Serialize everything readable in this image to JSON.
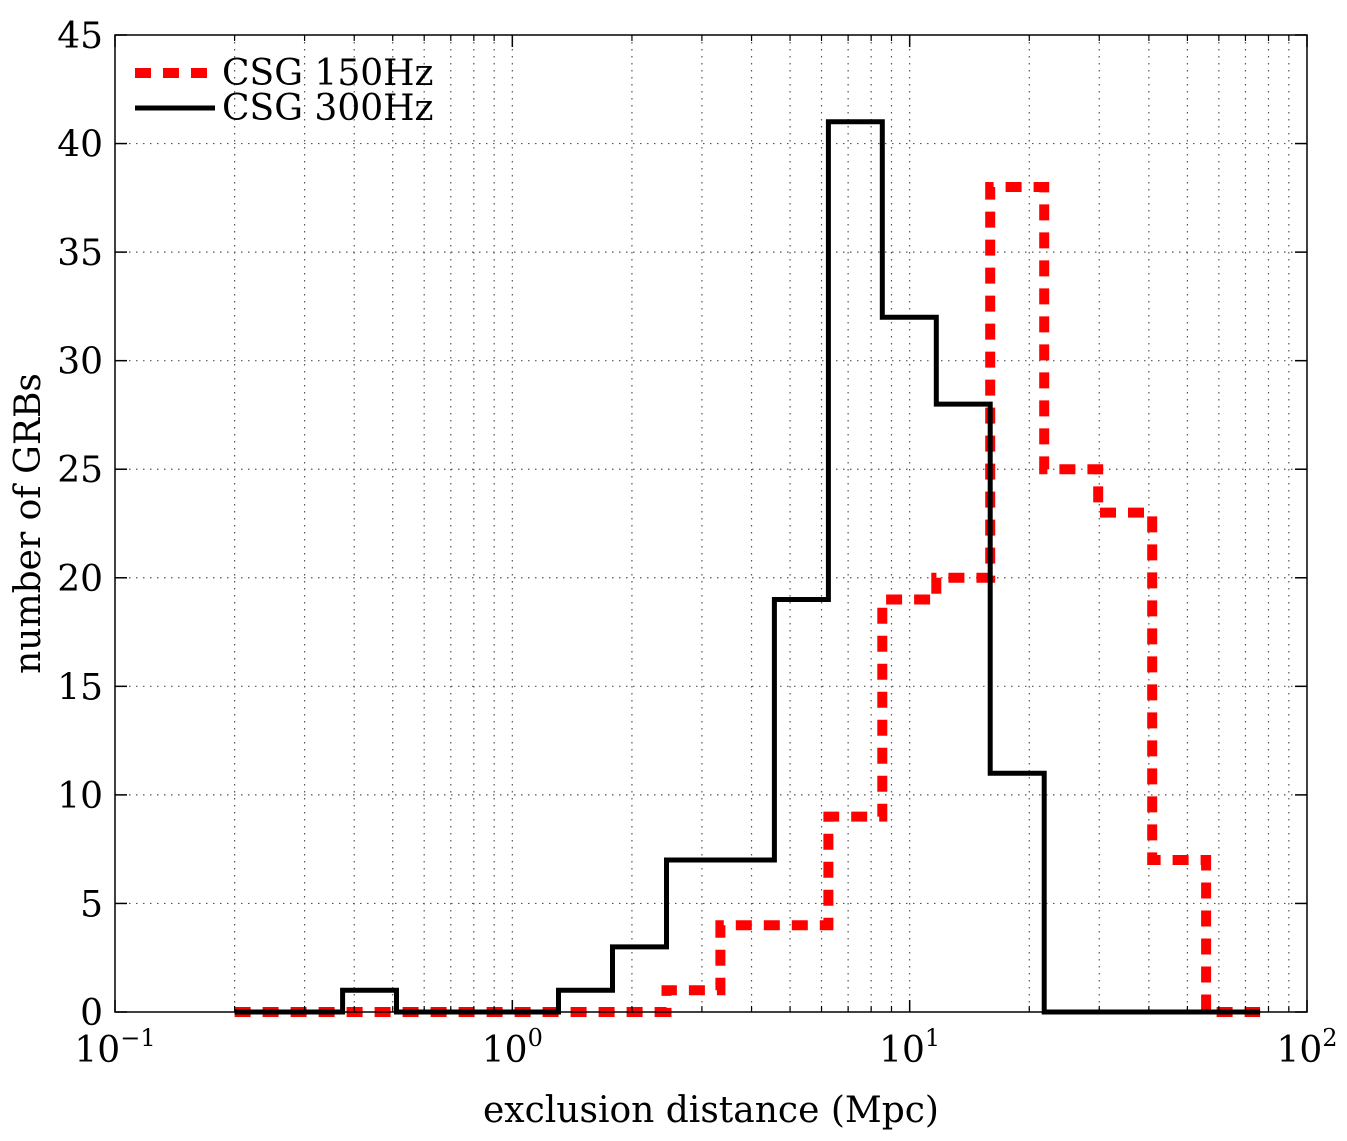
{
  "chart_data": {
    "type": "histogram",
    "xlabel": "exclusion distance (Mpc)",
    "ylabel": "number of GRBs",
    "xscale": "log",
    "xlim": [
      0.1,
      100
    ],
    "ylim": [
      0,
      45
    ],
    "grid": true,
    "legend_position": "top-left",
    "x_ticks": [
      {
        "value": 0.1,
        "base": "10",
        "exp": "−1"
      },
      {
        "value": 1,
        "base": "10",
        "exp": "0"
      },
      {
        "value": 10,
        "base": "10",
        "exp": "1"
      },
      {
        "value": 100,
        "base": "10",
        "exp": "2"
      }
    ],
    "y_ticks": [
      0,
      5,
      10,
      15,
      20,
      25,
      30,
      35,
      40,
      45
    ],
    "bin_edges": [
      0.2,
      0.273,
      0.374,
      0.511,
      0.699,
      0.956,
      1.307,
      1.787,
      2.443,
      3.34,
      4.566,
      6.243,
      8.535,
      11.67,
      15.95,
      21.81,
      29.82,
      40.77,
      55.74,
      76.2
    ],
    "series": [
      {
        "name": "CSG 150Hz",
        "color": "#ff0000",
        "style": "dashed",
        "counts": [
          0,
          0,
          0,
          0,
          0,
          0,
          0,
          0,
          1,
          4,
          4,
          9,
          19,
          20,
          38,
          25,
          23,
          7,
          0
        ]
      },
      {
        "name": "CSG 300Hz",
        "color": "#000000",
        "style": "solid",
        "counts": [
          0,
          0,
          1,
          0,
          0,
          0,
          1,
          3,
          7,
          7,
          19,
          41,
          32,
          28,
          11,
          0,
          0,
          0,
          0
        ]
      }
    ]
  }
}
